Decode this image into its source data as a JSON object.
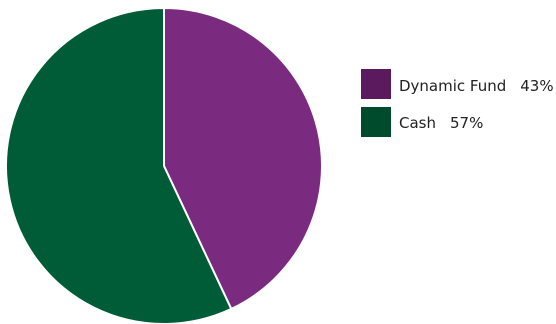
{
  "chart_data": {
    "type": "pie",
    "start_angle_deg": 0,
    "direction": "clockwise",
    "slice_border_color": "#ffffff",
    "legend_position": "right",
    "slices": [
      {
        "label": "Dynamic Fund",
        "value": 43,
        "value_label": "43%",
        "color": "#7a2a7f",
        "legend_swatch_color": "#5c1a5e"
      },
      {
        "label": "Cash",
        "value": 57,
        "value_label": "57%",
        "color": "#005c36",
        "legend_swatch_color": "#004b2c"
      }
    ]
  }
}
